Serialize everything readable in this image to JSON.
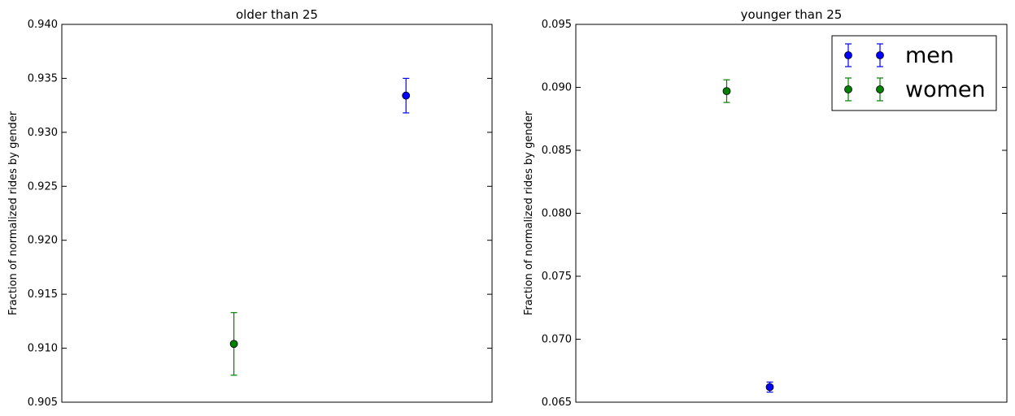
{
  "chart_data": [
    {
      "type": "scatter",
      "title": "older than 25",
      "xlabel": "",
      "ylabel": "Fraction of normalized rides by gender",
      "xlim": [
        0,
        1
      ],
      "ylim": [
        0.905,
        0.94
      ],
      "yticks": [
        "0.905",
        "0.910",
        "0.915",
        "0.920",
        "0.925",
        "0.930",
        "0.935",
        "0.940"
      ],
      "grid": false,
      "series": [
        {
          "name": "men",
          "color": "#0000ff",
          "points": [
            {
              "x": 0.8,
              "y": 0.9334,
              "err": 0.0016
            }
          ]
        },
        {
          "name": "women",
          "color": "#008000",
          "points": [
            {
              "x": 0.4,
              "y": 0.9104,
              "err": 0.0029
            }
          ]
        }
      ]
    },
    {
      "type": "scatter",
      "title": "younger than 25",
      "xlabel": "",
      "ylabel": "Fraction of normalized rides by gender",
      "xlim": [
        0,
        1
      ],
      "ylim": [
        0.065,
        0.095
      ],
      "yticks": [
        "0.065",
        "0.070",
        "0.075",
        "0.080",
        "0.085",
        "0.090",
        "0.095"
      ],
      "grid": false,
      "legend": {
        "placement": "upper right",
        "entries": [
          {
            "label": "men",
            "color": "#0000ff"
          },
          {
            "label": "women",
            "color": "#008000"
          }
        ]
      },
      "series": [
        {
          "name": "men",
          "color": "#0000ff",
          "points": [
            {
              "x": 0.45,
              "y": 0.0662,
              "err": 0.0004
            }
          ]
        },
        {
          "name": "women",
          "color": "#008000",
          "points": [
            {
              "x": 0.35,
              "y": 0.0897,
              "err": 0.0009
            }
          ]
        }
      ]
    }
  ]
}
